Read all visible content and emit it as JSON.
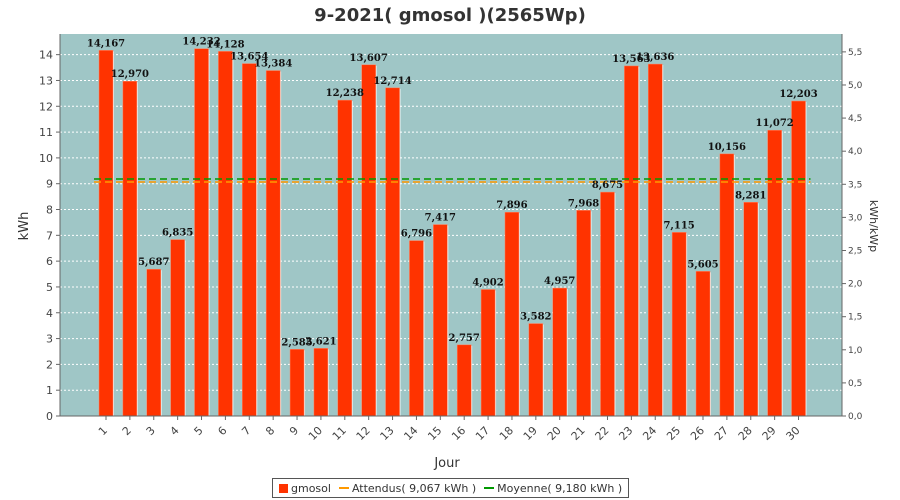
{
  "chart_data": {
    "type": "bar",
    "title": "9-2021( gmosol )(2565Wp)",
    "xlabel": "Jour",
    "ylabel": "kWh",
    "y2label": "kWh/kWp",
    "ylim": [
      0,
      14.8
    ],
    "y2lim": [
      0,
      5.77
    ],
    "yticks": [
      "0",
      "1",
      "2",
      "3",
      "4",
      "5",
      "6",
      "7",
      "8",
      "9",
      "10",
      "11",
      "12",
      "13",
      "14"
    ],
    "y2ticks": [
      "0,0",
      "0,5",
      "1,0",
      "1,5",
      "2,0",
      "2,5",
      "3,0",
      "3,5",
      "4,0",
      "4,5",
      "5,0",
      "5,5"
    ],
    "categories": [
      "1",
      "2",
      "3",
      "4",
      "5",
      "6",
      "7",
      "8",
      "9",
      "10",
      "11",
      "12",
      "13",
      "14",
      "15",
      "16",
      "17",
      "18",
      "19",
      "20",
      "21",
      "22",
      "23",
      "24",
      "25",
      "26",
      "27",
      "28",
      "29",
      "30"
    ],
    "series": [
      {
        "name": "gmosol",
        "color": "#ff3300",
        "values": [
          14.167,
          12.97,
          5.687,
          6.835,
          14.232,
          14.128,
          13.654,
          13.384,
          2.585,
          2.621,
          12.238,
          13.607,
          12.714,
          6.796,
          7.417,
          2.757,
          4.902,
          7.896,
          3.582,
          4.957,
          7.968,
          8.675,
          13.563,
          13.636,
          7.115,
          5.605,
          10.156,
          8.281,
          11.072,
          12.203
        ],
        "labels": [
          "14,167",
          "12,970",
          "5,687",
          "6,835",
          "14,232",
          "14,128",
          "13,654",
          "13,384",
          "2,585",
          "2,621",
          "12,238",
          "13,607",
          "12,714",
          "6,796",
          "7,417",
          "2,757",
          "4,902",
          "7,896",
          "3,582",
          "4,957",
          "7,968",
          "8,675",
          "13,563",
          "13,636",
          "7,115",
          "5,605",
          "10,156",
          "8,281",
          "11,072",
          "12,203"
        ]
      }
    ],
    "reference_lines": [
      {
        "name": "Attendus( 9,067 kWh )",
        "value": 9.067,
        "color": "#ff9900"
      },
      {
        "name": "Moyenne( 9,180 kWh )",
        "value": 9.18,
        "color": "#009900"
      }
    ],
    "plot_background": "#9fc6c6",
    "grid": true,
    "legend_position": "bottom"
  },
  "legend": {
    "items": [
      {
        "label": "gmosol"
      },
      {
        "label": "Attendus( 9,067 kWh )"
      },
      {
        "label": "Moyenne( 9,180 kWh )"
      }
    ]
  }
}
